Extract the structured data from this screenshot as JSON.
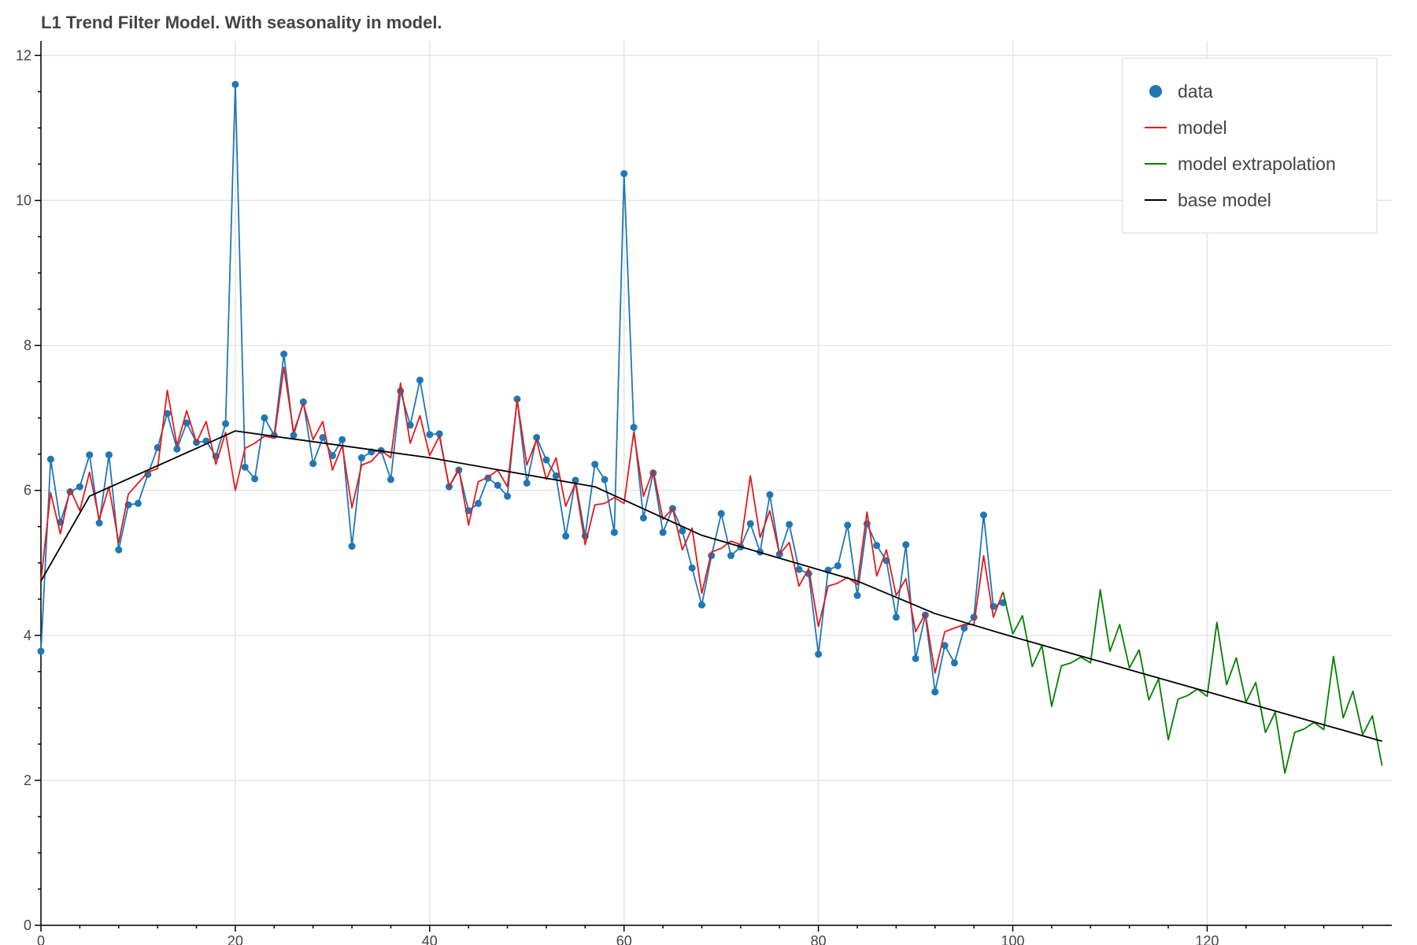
{
  "chart_data": {
    "type": "line",
    "title": "L1 Trend Filter Model. With seasonality in model.",
    "xlabel": "",
    "ylabel": "",
    "xlim": [
      0,
      139
    ],
    "ylim": [
      0,
      12.2
    ],
    "x_ticks": [
      0,
      20,
      40,
      60,
      80,
      100,
      120
    ],
    "y_ticks": [
      0,
      2,
      4,
      6,
      8,
      10,
      12
    ],
    "grid": true,
    "legend_position": "top-right",
    "colors": {
      "data": "#1f77b4",
      "model": "#e41a1c",
      "model_extrapolation": "#008000",
      "base_model": "#000000",
      "grid": "#e5e5e5",
      "axis": "#000000"
    },
    "legend": [
      {
        "label": "data",
        "glyph": "circle",
        "color": "#1f77b4"
      },
      {
        "label": "model",
        "glyph": "line",
        "color": "#e41a1c"
      },
      {
        "label": "model extrapolation",
        "glyph": "line",
        "color": "#008000"
      },
      {
        "label": "base model",
        "glyph": "line",
        "color": "#000000"
      }
    ],
    "series": [
      {
        "name": "data",
        "style": "line+markers",
        "x_start": 0,
        "values": [
          3.78,
          6.43,
          5.56,
          5.98,
          6.05,
          6.49,
          5.55,
          6.49,
          5.18,
          5.8,
          5.82,
          6.22,
          6.59,
          7.06,
          6.57,
          6.93,
          6.66,
          6.68,
          6.47,
          6.92,
          11.6,
          6.32,
          6.16,
          7.0,
          6.76,
          7.88,
          6.76,
          7.22,
          6.37,
          6.73,
          6.48,
          6.7,
          5.23,
          6.45,
          6.53,
          6.55,
          6.15,
          7.37,
          6.9,
          7.52,
          6.77,
          6.78,
          6.05,
          6.28,
          5.72,
          5.82,
          6.17,
          6.07,
          5.92,
          7.26,
          6.1,
          6.73,
          6.42,
          6.2,
          5.37,
          6.14,
          5.37,
          6.36,
          6.15,
          5.42,
          10.37,
          6.87,
          5.62,
          6.24,
          5.42,
          5.75,
          5.44,
          4.93,
          4.42,
          5.1,
          5.68,
          5.1,
          5.22,
          5.54,
          5.15,
          5.94,
          5.12,
          5.53,
          4.91,
          4.85,
          3.74,
          4.9,
          4.96,
          5.52,
          4.55,
          5.54,
          5.24,
          5.03,
          4.25,
          5.25,
          3.68,
          4.28,
          3.22,
          3.86,
          3.62,
          4.1,
          4.25,
          5.66,
          4.4,
          4.45
        ]
      },
      {
        "name": "model",
        "style": "line",
        "x_start": 0,
        "values": [
          4.75,
          5.97,
          5.4,
          6.02,
          5.72,
          6.25,
          5.6,
          6.05,
          5.28,
          5.95,
          6.1,
          6.25,
          6.3,
          7.38,
          6.62,
          7.1,
          6.66,
          6.95,
          6.36,
          6.8,
          6.0,
          6.58,
          6.65,
          6.75,
          6.72,
          7.7,
          6.8,
          7.2,
          6.7,
          6.95,
          6.28,
          6.62,
          5.76,
          6.35,
          6.4,
          6.55,
          6.45,
          7.48,
          6.65,
          7.03,
          6.48,
          6.75,
          6.05,
          6.3,
          5.52,
          6.12,
          6.18,
          6.28,
          6.05,
          7.25,
          6.35,
          6.7,
          6.15,
          6.45,
          5.78,
          6.1,
          5.25,
          5.8,
          5.82,
          5.9,
          5.82,
          6.8,
          5.92,
          6.28,
          5.6,
          5.75,
          5.18,
          5.48,
          4.58,
          5.15,
          5.2,
          5.3,
          5.25,
          6.2,
          5.35,
          5.72,
          5.12,
          5.28,
          4.68,
          4.92,
          4.12,
          4.68,
          4.72,
          4.8,
          4.7,
          5.7,
          4.82,
          5.18,
          4.55,
          4.78,
          4.05,
          4.3,
          3.48,
          4.05,
          4.1,
          4.15,
          4.15,
          5.1,
          4.25,
          4.6
        ]
      },
      {
        "name": "model extrapolation",
        "style": "line",
        "x_start": 99,
        "values": [
          4.6,
          4.02,
          4.27,
          3.57,
          3.86,
          3.02,
          3.58,
          3.62,
          3.7,
          3.62,
          4.63,
          3.78,
          4.15,
          3.55,
          3.8,
          3.11,
          3.4,
          2.56,
          3.12,
          3.17,
          3.26,
          3.16,
          4.18,
          3.32,
          3.69,
          3.08,
          3.35,
          2.66,
          2.94,
          2.1,
          2.66,
          2.71,
          2.8,
          2.7,
          3.71,
          2.86,
          3.23,
          2.63,
          2.89,
          2.2
        ]
      },
      {
        "name": "base model",
        "style": "line",
        "points": [
          [
            0,
            4.75
          ],
          [
            5,
            5.92
          ],
          [
            20,
            6.82
          ],
          [
            40,
            6.45
          ],
          [
            57,
            6.05
          ],
          [
            68,
            5.38
          ],
          [
            84,
            4.75
          ],
          [
            92,
            4.3
          ],
          [
            100,
            3.98
          ],
          [
            138,
            2.54
          ]
        ]
      }
    ]
  }
}
